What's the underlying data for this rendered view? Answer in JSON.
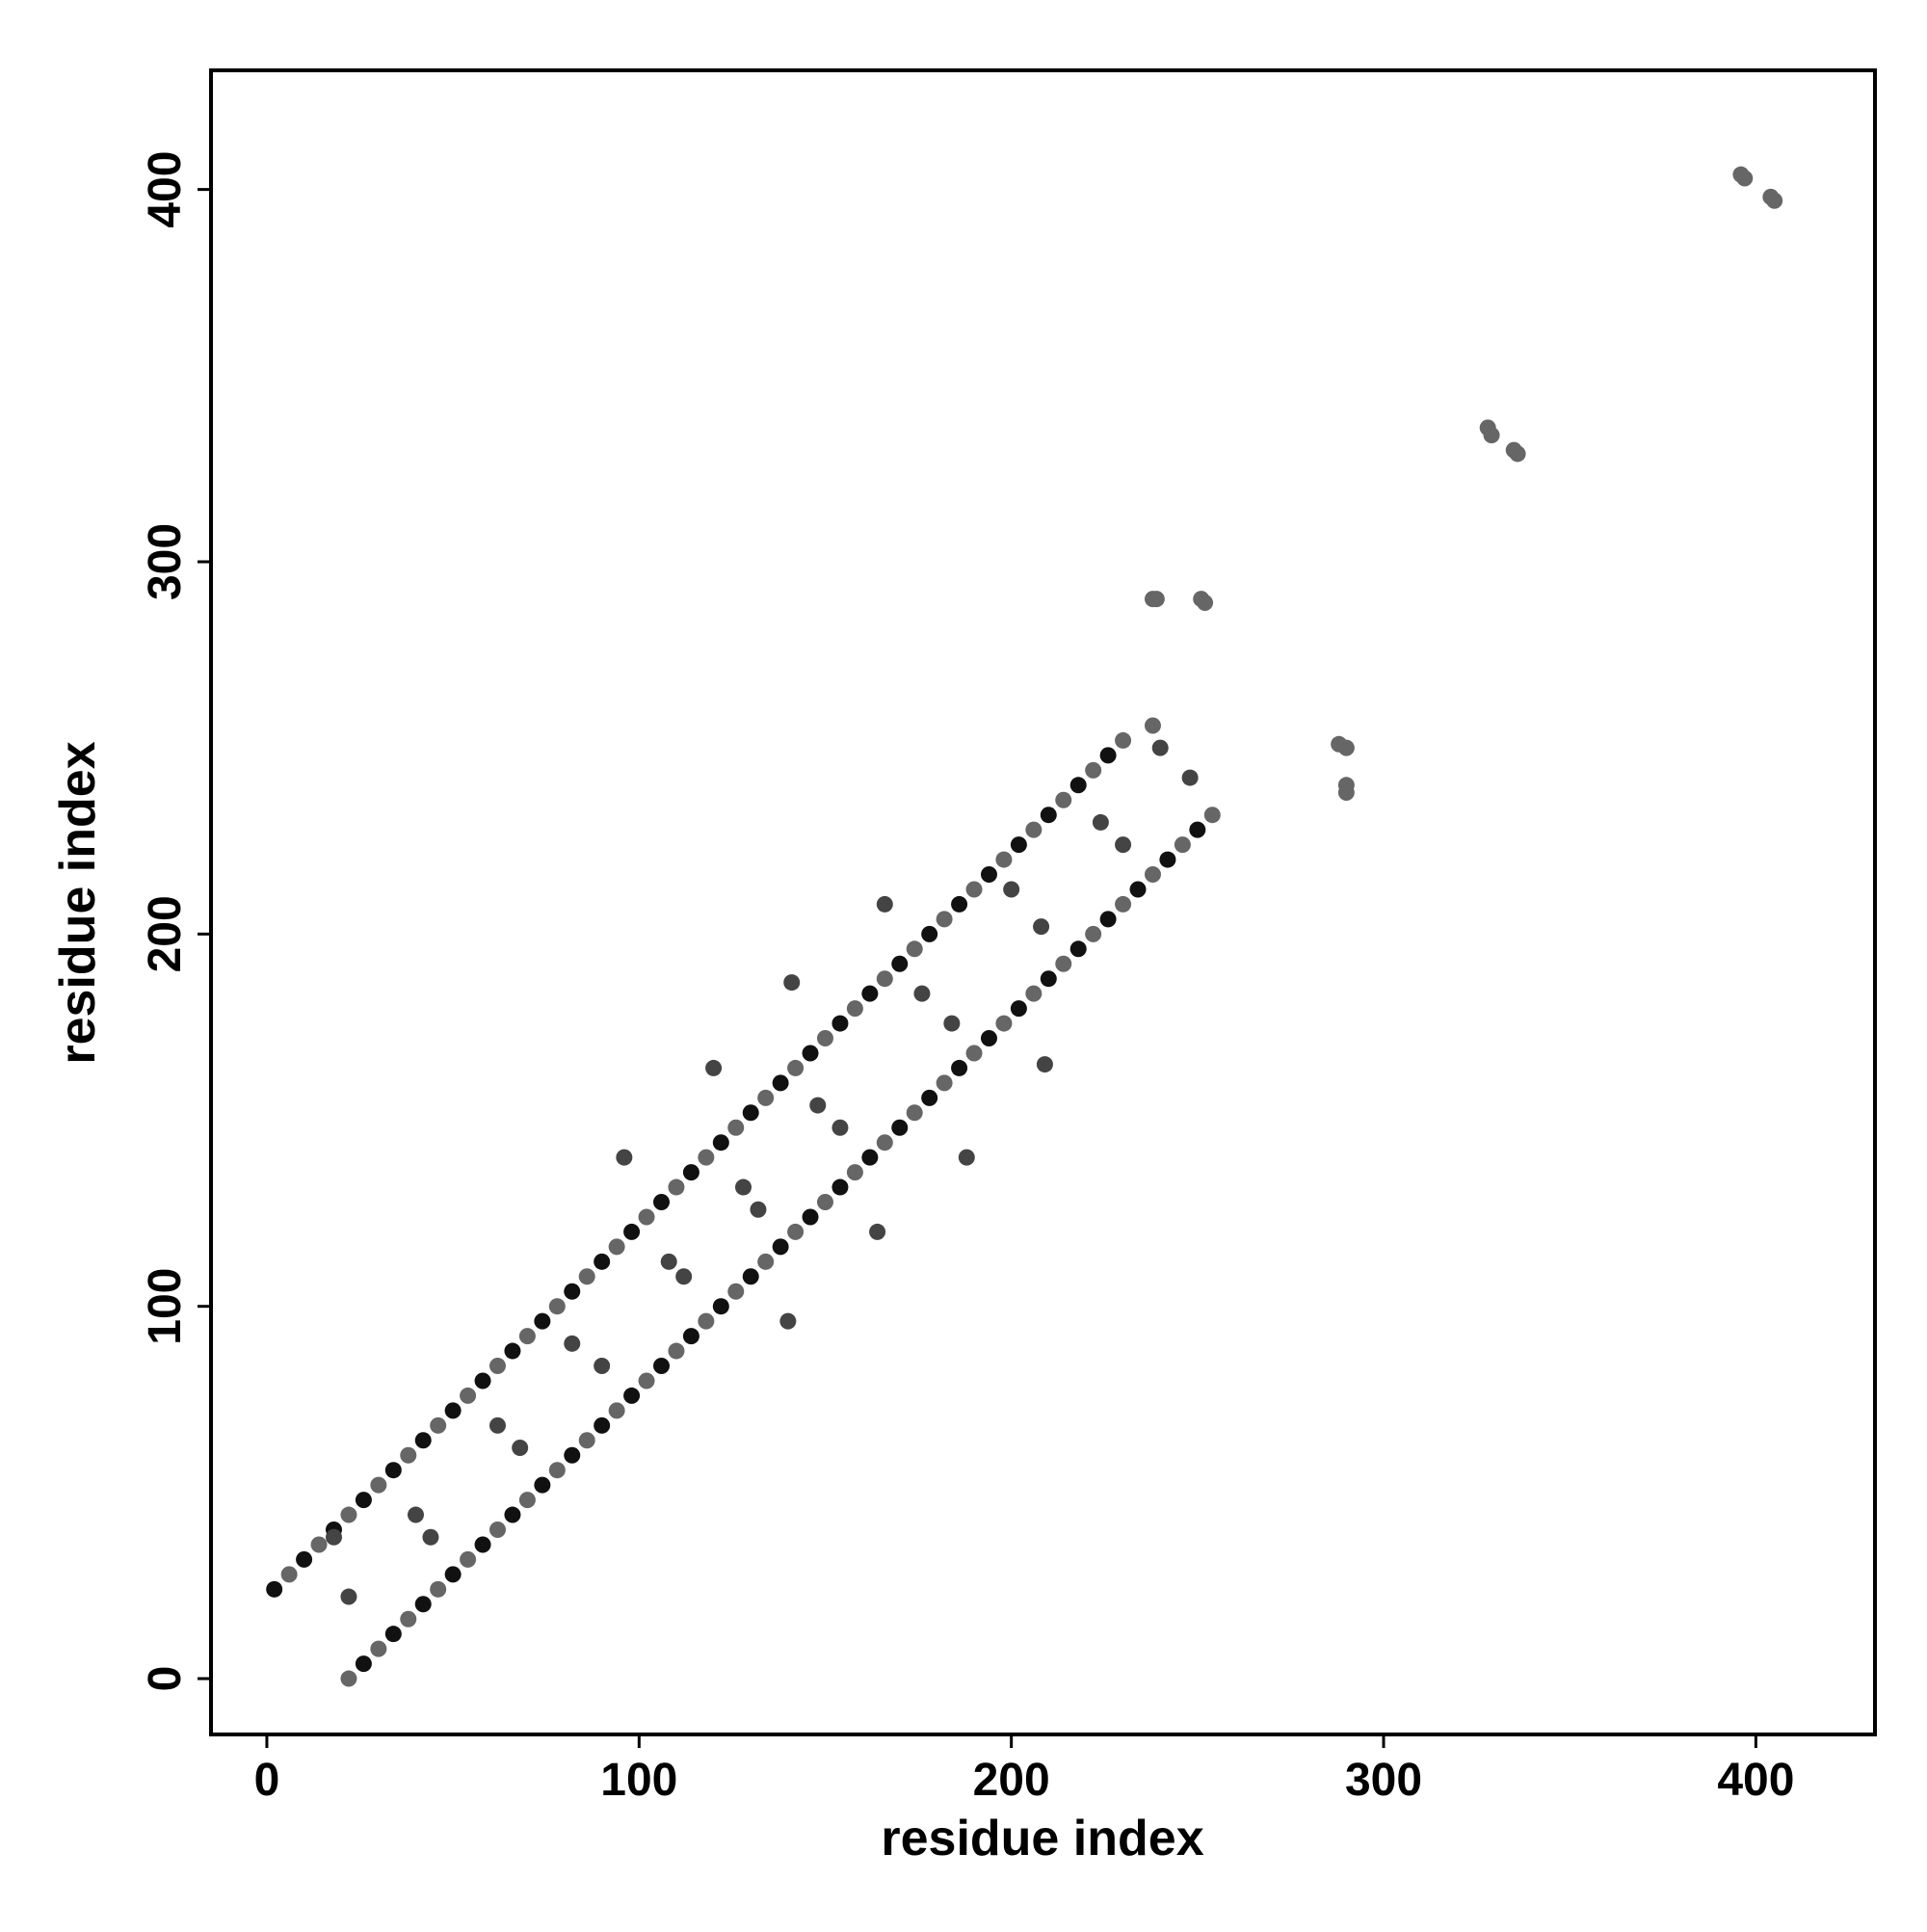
{
  "chart_data": {
    "type": "scatter",
    "xlabel": "residue index",
    "ylabel": "residue index",
    "xlim": [
      -15,
      432
    ],
    "ylim": [
      -15,
      432
    ],
    "xticks": [
      0,
      100,
      200,
      300,
      400
    ],
    "yticks": [
      0,
      100,
      200,
      300,
      400
    ],
    "grid": false,
    "series": [
      {
        "color": "#111111",
        "x": [
          2,
          10,
          18,
          26,
          34,
          42,
          50,
          58,
          66,
          74,
          82,
          90,
          98,
          106,
          114,
          122,
          130,
          138,
          146,
          154,
          162,
          170,
          178,
          186,
          194,
          202,
          210,
          218,
          226,
          26,
          34,
          42,
          50,
          58,
          66,
          74,
          82,
          90,
          98,
          106,
          114,
          122,
          130,
          138,
          146,
          154,
          162,
          170,
          178,
          186,
          194,
          202,
          210,
          218,
          226,
          234,
          242,
          250
        ],
        "y": [
          24,
          32,
          40,
          48,
          56,
          64,
          72,
          80,
          88,
          96,
          104,
          112,
          120,
          128,
          136,
          144,
          152,
          160,
          168,
          176,
          184,
          192,
          200,
          208,
          216,
          224,
          232,
          240,
          248,
          4,
          12,
          20,
          28,
          36,
          44,
          52,
          60,
          68,
          76,
          84,
          92,
          100,
          108,
          116,
          124,
          132,
          140,
          148,
          156,
          164,
          172,
          180,
          188,
          196,
          204,
          212,
          220,
          228
        ]
      },
      {
        "color": "#666666",
        "x": [
          6,
          14,
          22,
          30,
          38,
          46,
          54,
          62,
          70,
          78,
          86,
          94,
          102,
          110,
          118,
          126,
          134,
          142,
          150,
          158,
          166,
          174,
          182,
          190,
          198,
          206,
          214,
          222,
          230,
          238,
          22,
          30,
          38,
          46,
          54,
          62,
          70,
          78,
          86,
          94,
          102,
          110,
          118,
          126,
          134,
          142,
          150,
          158,
          166,
          174,
          182,
          190,
          198,
          206,
          214,
          222,
          230,
          238,
          246,
          254,
          238,
          239,
          251,
          252,
          288,
          290,
          290,
          290,
          328,
          329,
          335,
          336,
          396,
          397,
          404,
          405
        ],
        "y": [
          28,
          36,
          44,
          52,
          60,
          68,
          76,
          84,
          92,
          100,
          108,
          116,
          124,
          132,
          140,
          148,
          156,
          164,
          172,
          180,
          188,
          196,
          204,
          212,
          220,
          228,
          236,
          244,
          252,
          256,
          0,
          8,
          16,
          24,
          32,
          40,
          48,
          56,
          64,
          72,
          80,
          88,
          96,
          104,
          112,
          120,
          128,
          136,
          144,
          152,
          160,
          168,
          176,
          184,
          192,
          200,
          208,
          216,
          224,
          232,
          290,
          290,
          290,
          289,
          251,
          250,
          240,
          238,
          336,
          334,
          330,
          329,
          404,
          403,
          398,
          397
        ]
      },
      {
        "color": "#444444",
        "x": [
          96,
          141,
          120,
          140,
          188,
          209,
          166,
          164,
          18,
          22,
          40,
          44,
          62,
          68,
          82,
          90,
          112,
          108,
          132,
          128,
          154,
          148,
          176,
          184,
          200,
          208,
          224,
          230,
          240,
          248
        ],
        "y": [
          140,
          187,
          164,
          96,
          140,
          165,
          208,
          120,
          38,
          22,
          44,
          38,
          68,
          62,
          90,
          84,
          108,
          112,
          126,
          132,
          148,
          154,
          184,
          176,
          212,
          202,
          230,
          224,
          250,
          242
        ]
      }
    ]
  }
}
